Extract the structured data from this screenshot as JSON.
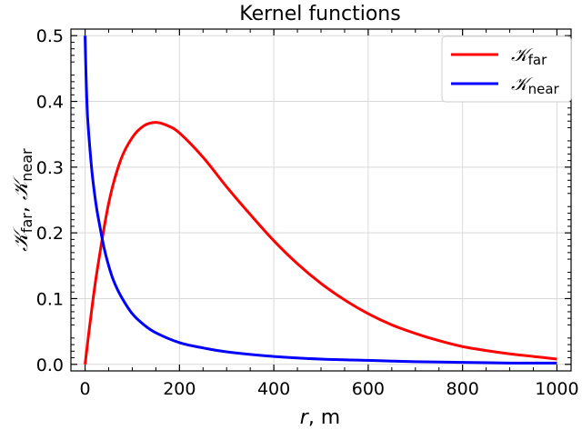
{
  "chart_data": {
    "type": "line",
    "title": "Kernel functions",
    "xlabel_var": "r",
    "xlabel_unit": ", m",
    "ylabel_part1": "𝒦",
    "ylabel_sub1": "far",
    "ylabel_sep": ", ",
    "ylabel_part2": "𝒦",
    "ylabel_sub2": "near",
    "xlim": [
      -30,
      1030
    ],
    "ylim": [
      -0.01,
      0.51
    ],
    "xticks": [
      0,
      200,
      400,
      600,
      800,
      1000
    ],
    "xtick_labels": [
      "0",
      "200",
      "400",
      "600",
      "800",
      "1000"
    ],
    "yticks": [
      0.0,
      0.1,
      0.2,
      0.3,
      0.4,
      0.5
    ],
    "ytick_labels": [
      "0.0",
      "0.1",
      "0.2",
      "0.3",
      "0.4",
      "0.5"
    ],
    "grid": true,
    "legend_position": "top-right",
    "series": [
      {
        "name_symbol": "𝒦",
        "name_sub": "far",
        "color": "#ff0000",
        "x": [
          0,
          10,
          25,
          50,
          75,
          100,
          125,
          150,
          175,
          200,
          250,
          300,
          350,
          400,
          450,
          500,
          550,
          600,
          650,
          700,
          750,
          800,
          850,
          900,
          950,
          1000
        ],
        "y": [
          0.0,
          0.06,
          0.14,
          0.245,
          0.31,
          0.345,
          0.363,
          0.368,
          0.363,
          0.352,
          0.315,
          0.27,
          0.228,
          0.188,
          0.153,
          0.123,
          0.098,
          0.077,
          0.06,
          0.047,
          0.036,
          0.027,
          0.021,
          0.016,
          0.012,
          0.008
        ]
      },
      {
        "name_symbol": "𝒦",
        "name_sub": "near",
        "color": "#0000ff",
        "x": [
          0,
          2,
          5,
          10,
          15,
          20,
          25,
          30,
          40,
          50,
          60,
          75,
          100,
          125,
          150,
          200,
          250,
          300,
          400,
          500,
          600,
          700,
          800,
          900,
          1000
        ],
        "y": [
          0.5,
          0.44,
          0.38,
          0.33,
          0.29,
          0.26,
          0.235,
          0.215,
          0.178,
          0.15,
          0.128,
          0.105,
          0.077,
          0.06,
          0.048,
          0.033,
          0.025,
          0.019,
          0.012,
          0.008,
          0.006,
          0.004,
          0.003,
          0.002,
          0.002
        ]
      }
    ]
  }
}
